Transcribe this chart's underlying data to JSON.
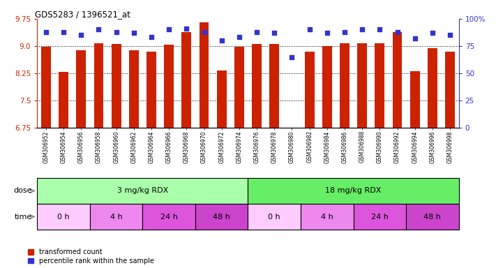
{
  "title": "GDS5283 / 1396521_at",
  "samples": [
    "GSM306952",
    "GSM306954",
    "GSM306956",
    "GSM306958",
    "GSM306960",
    "GSM306962",
    "GSM306964",
    "GSM306966",
    "GSM306968",
    "GSM306970",
    "GSM306972",
    "GSM306974",
    "GSM306976",
    "GSM306978",
    "GSM306980",
    "GSM306982",
    "GSM306984",
    "GSM306986",
    "GSM306988",
    "GSM306990",
    "GSM306992",
    "GSM306994",
    "GSM306996",
    "GSM306998"
  ],
  "bar_values": [
    8.98,
    8.28,
    8.88,
    9.08,
    9.05,
    8.88,
    8.85,
    9.04,
    9.38,
    9.65,
    8.32,
    8.98,
    9.05,
    9.05,
    6.75,
    8.84,
    9.0,
    9.08,
    9.08,
    9.08,
    9.38,
    8.3,
    8.95,
    8.85
  ],
  "percentile_values": [
    88,
    88,
    85,
    90,
    88,
    87,
    83,
    90,
    91,
    88,
    80,
    83,
    88,
    87,
    65,
    90,
    87,
    88,
    90,
    90,
    88,
    82,
    87,
    85
  ],
  "ymin": 6.75,
  "ymax": 9.75,
  "yticks_left": [
    6.75,
    7.5,
    8.25,
    9.0,
    9.75
  ],
  "yticks_right": [
    0,
    25,
    50,
    75,
    100
  ],
  "bar_color": "#cc2200",
  "dot_color": "#3333cc",
  "bar_width": 0.55,
  "dose_groups": [
    {
      "label": "3 mg/kg RDX",
      "start": 0,
      "end": 12,
      "color": "#aaffaa"
    },
    {
      "label": "18 mg/kg RDX",
      "start": 12,
      "end": 24,
      "color": "#66ee66"
    }
  ],
  "time_groups": [
    {
      "label": "0 h",
      "start": 0,
      "end": 3,
      "color": "#ffccff"
    },
    {
      "label": "4 h",
      "start": 3,
      "end": 6,
      "color": "#ee88ee"
    },
    {
      "label": "24 h",
      "start": 6,
      "end": 9,
      "color": "#dd55dd"
    },
    {
      "label": "48 h",
      "start": 9,
      "end": 12,
      "color": "#cc44cc"
    },
    {
      "label": "0 h",
      "start": 12,
      "end": 15,
      "color": "#ffccff"
    },
    {
      "label": "4 h",
      "start": 15,
      "end": 18,
      "color": "#ee88ee"
    },
    {
      "label": "24 h",
      "start": 18,
      "end": 21,
      "color": "#dd55dd"
    },
    {
      "label": "48 h",
      "start": 21,
      "end": 24,
      "color": "#cc44cc"
    }
  ],
  "legend_items": [
    {
      "label": "transformed count",
      "color": "#cc2200"
    },
    {
      "label": "percentile rank within the sample",
      "color": "#3333cc"
    }
  ]
}
